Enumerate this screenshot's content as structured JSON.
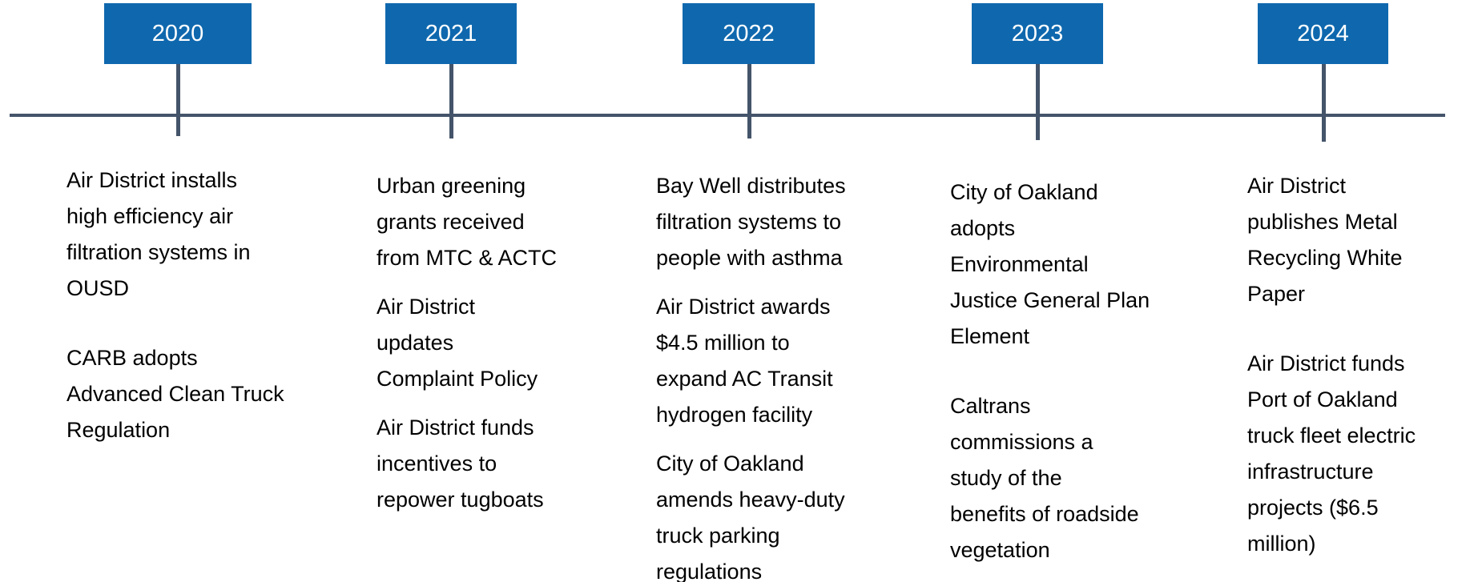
{
  "timeline": [
    {
      "year": "2020",
      "events": [
        [
          "Air District installs",
          "high efficiency air",
          "filtration systems in",
          "OUSD"
        ],
        [
          "CARB adopts",
          "Advanced Clean Truck",
          "Regulation"
        ]
      ]
    },
    {
      "year": "2021",
      "events": [
        [
          "Urban greening",
          "grants received",
          "from MTC & ACTC"
        ],
        [
          "Air District",
          "updates",
          "Complaint Policy"
        ],
        [
          "Air District funds",
          "incentives to",
          "repower tugboats"
        ]
      ]
    },
    {
      "year": "2022",
      "events": [
        [
          "Bay Well distributes",
          "filtration systems to",
          "people with asthma"
        ],
        [
          "Air District awards",
          "$4.5 million to",
          "expand AC Transit",
          "hydrogen facility"
        ],
        [
          "City of Oakland",
          "amends heavy-duty",
          "truck parking",
          "regulations"
        ]
      ]
    },
    {
      "year": "2023",
      "events": [
        [
          "City of Oakland",
          "adopts",
          "Environmental",
          "Justice General Plan",
          "Element"
        ],
        [
          "Caltrans",
          "commissions a",
          "study of the",
          "benefits of roadside",
          "vegetation"
        ]
      ]
    },
    {
      "year": "2024",
      "events": [
        [
          "Air District",
          "publishes Metal",
          "Recycling White",
          "Paper"
        ],
        [
          "Air District funds",
          "Port of Oakland",
          "truck fleet electric",
          "infrastructure",
          "projects ($6.5",
          "million)"
        ]
      ]
    }
  ]
}
